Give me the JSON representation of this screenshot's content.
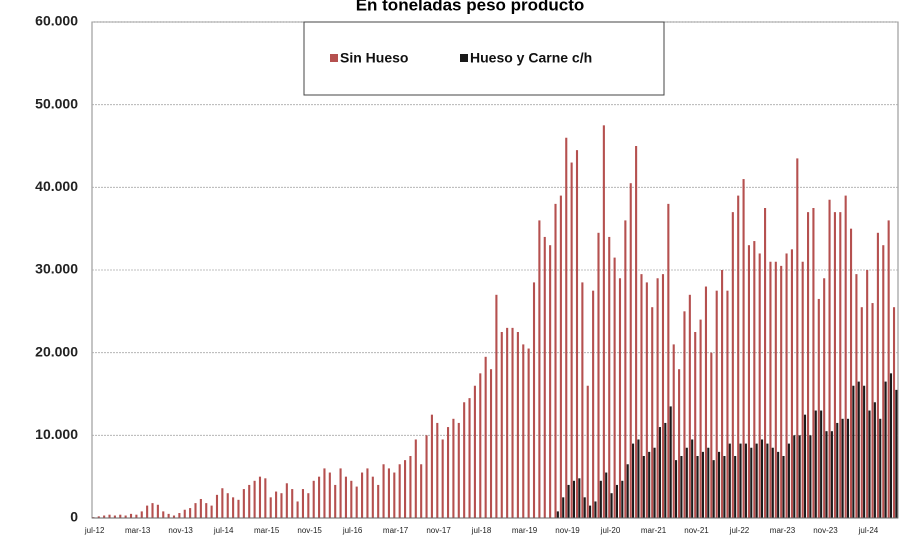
{
  "chart_data": {
    "type": "bar",
    "title": "En toneladas peso producto",
    "categories": [
      "jul-12",
      null,
      null,
      null,
      null,
      null,
      null,
      null,
      "mar-13",
      null,
      null,
      null,
      null,
      null,
      null,
      null,
      "nov-13",
      null,
      null,
      null,
      null,
      null,
      null,
      null,
      "jul-14",
      null,
      null,
      null,
      null,
      null,
      null,
      null,
      "mar-15",
      null,
      null,
      null,
      null,
      null,
      null,
      null,
      "nov-15",
      null,
      null,
      null,
      null,
      null,
      null,
      null,
      "jul-16",
      null,
      null,
      null,
      null,
      null,
      null,
      null,
      "mar-17",
      null,
      null,
      null,
      null,
      null,
      null,
      null,
      "nov-17",
      null,
      null,
      null,
      null,
      null,
      null,
      null,
      "jul-18",
      null,
      null,
      null,
      null,
      null,
      null,
      null,
      "mar-19",
      null,
      null,
      null,
      null,
      null,
      null,
      null,
      "nov-19",
      null,
      null,
      null,
      null,
      null,
      null,
      null,
      "jul-20",
      null,
      null,
      null,
      null,
      null,
      null,
      null,
      "mar-21",
      null,
      null,
      null,
      null,
      null,
      null,
      null,
      "nov-21",
      null,
      null,
      null,
      null,
      null,
      null,
      null,
      "jul-22",
      null,
      null,
      null,
      null,
      null,
      null,
      null,
      "mar-23",
      null,
      null,
      null,
      null,
      null,
      null,
      null,
      "nov-23",
      null,
      null,
      null,
      null,
      null,
      null,
      null,
      "jul-24",
      null,
      null,
      null,
      null,
      null
    ],
    "series": [
      {
        "name": "Sin Hueso",
        "color": "#b5504f",
        "values": [
          100,
          200,
          300,
          400,
          300,
          400,
          300,
          500,
          400,
          800,
          1500,
          1800,
          1600,
          800,
          500,
          300,
          600,
          1000,
          1200,
          1800,
          2300,
          1800,
          1500,
          2800,
          3600,
          3000,
          2500,
          2200,
          3500,
          4000,
          4500,
          5000,
          4800,
          2500,
          3200,
          3000,
          4200,
          3500,
          2000,
          3500,
          3000,
          4500,
          5000,
          6000,
          5500,
          4000,
          6000,
          5000,
          4500,
          3800,
          5500,
          6000,
          5000,
          4000,
          6500,
          6000,
          5500,
          6500,
          7000,
          7500,
          9500,
          6500,
          10000,
          12500,
          11500,
          9500,
          11000,
          12000,
          11500,
          14000,
          14500,
          16000,
          17500,
          19500,
          18000,
          27000,
          22500,
          23000,
          23000,
          22500,
          21000,
          20500,
          28500,
          36000,
          34000,
          33000,
          38000,
          39000,
          46000,
          43000,
          44500,
          28500,
          16000,
          27500,
          34500,
          47500,
          34000,
          31500,
          29000,
          36000,
          40500,
          45000,
          29500,
          28500,
          25500,
          29000,
          29500,
          38000,
          21000,
          18000,
          25000,
          27000,
          22500,
          24000,
          28000,
          20000,
          27500,
          30000,
          27500,
          37000,
          39000,
          41000,
          33000,
          33500,
          32000,
          37500,
          31000,
          31000,
          30500,
          32000,
          32500,
          43500,
          31000,
          37000,
          37500,
          26500,
          29000,
          38500,
          37000,
          37000,
          39000,
          35000,
          29500,
          25500,
          30000,
          26000,
          34500,
          33000,
          36000,
          25500
        ]
      },
      {
        "name": "Hueso y Carne c/h",
        "color": "#1a1a1a",
        "values": [
          null,
          null,
          null,
          null,
          null,
          null,
          null,
          null,
          null,
          null,
          null,
          null,
          null,
          null,
          null,
          null,
          null,
          null,
          null,
          null,
          null,
          null,
          null,
          null,
          null,
          null,
          null,
          null,
          null,
          null,
          null,
          null,
          null,
          null,
          null,
          null,
          null,
          null,
          null,
          null,
          null,
          null,
          null,
          null,
          null,
          null,
          null,
          null,
          null,
          null,
          null,
          null,
          null,
          null,
          null,
          null,
          null,
          null,
          null,
          null,
          null,
          null,
          null,
          null,
          null,
          null,
          null,
          null,
          null,
          null,
          null,
          null,
          null,
          null,
          null,
          null,
          null,
          null,
          null,
          null,
          null,
          null,
          null,
          null,
          null,
          null,
          800,
          2500,
          4000,
          4500,
          4800,
          2500,
          1500,
          2000,
          4500,
          5500,
          3000,
          4000,
          4500,
          6500,
          9000,
          9500,
          7500,
          8000,
          8500,
          11000,
          11500,
          13500,
          7000,
          7500,
          8500,
          9500,
          7500,
          8000,
          8500,
          7000,
          8000,
          7500,
          9000,
          7500,
          9000,
          9000,
          8500,
          9000,
          9500,
          9000,
          8500,
          8000,
          7500,
          9000,
          10000,
          10000,
          12500,
          10000,
          13000,
          13000,
          10500,
          10500,
          11500,
          12000,
          12000,
          16000,
          16500,
          16000,
          13000,
          14000,
          12000,
          16500,
          17500,
          15500
        ]
      }
    ],
    "ylim": [
      0,
      60000
    ],
    "yticks": [
      0,
      {
        "value": 10000,
        "label": "10.000"
      },
      {
        "value": 20000,
        "label": "20.000"
      },
      {
        "value": 30000,
        "label": "30.000"
      },
      {
        "value": 40000,
        "label": "40.000"
      },
      {
        "value": 50000,
        "label": "50.000"
      },
      {
        "value": 60000,
        "label": "60.000"
      }
    ],
    "grid": true,
    "legend": "top"
  }
}
